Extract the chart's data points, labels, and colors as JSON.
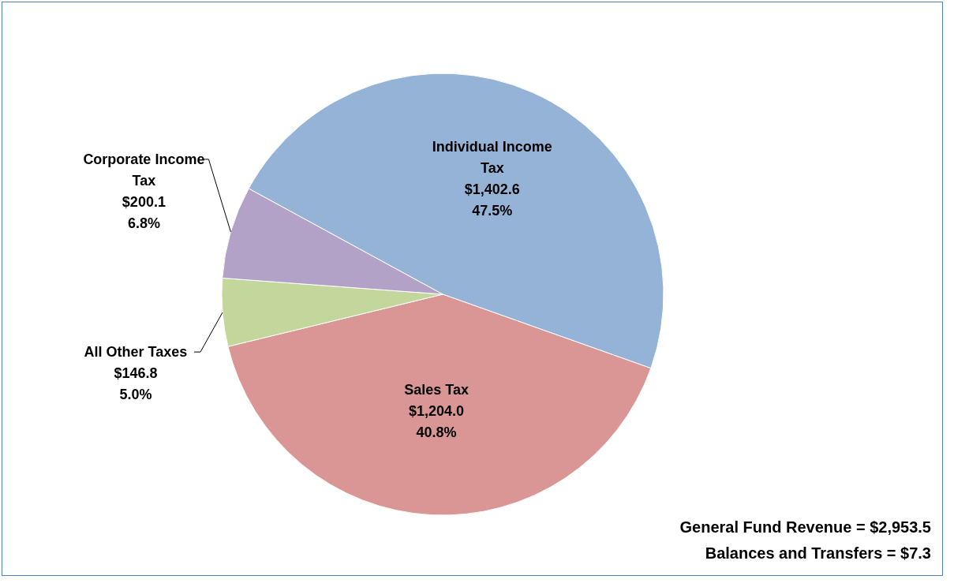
{
  "chart_data": {
    "type": "pie",
    "categories": [
      "Individual Income Tax",
      "Sales Tax",
      "All Other Taxes",
      "Corporate Income Tax"
    ],
    "values": [
      1402.6,
      1204.0,
      146.8,
      200.1
    ],
    "colors": [
      "#95b3d7",
      "#d99694",
      "#c3d69b",
      "#b3a2c7"
    ],
    "value_labels": [
      "$1,402.6\n47.5%",
      "$1,204.0\n40.8%",
      "$146.8\n5.0%",
      "$200.1\n6.8%"
    ],
    "annotations": [
      "General Fund Revenue = $2,953.5",
      "Balances and Transfers = $7.3"
    ],
    "legend": false
  }
}
